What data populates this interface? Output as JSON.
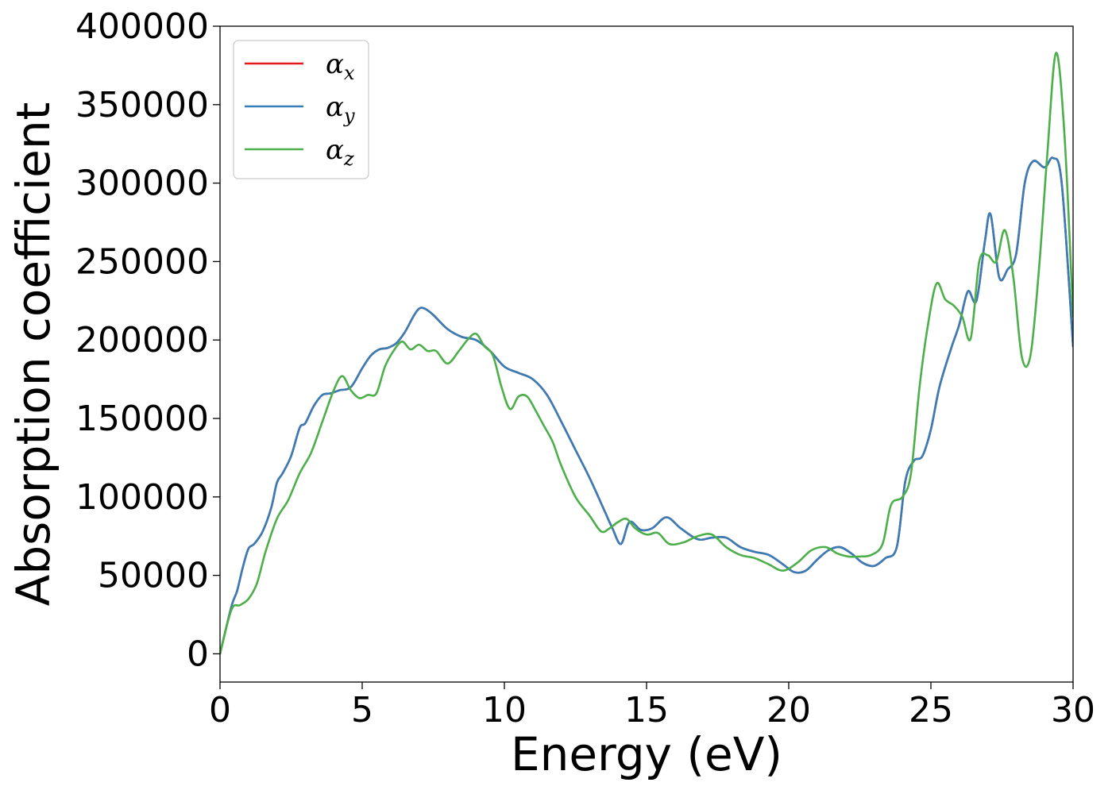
{
  "chart_data": {
    "type": "line",
    "title": "",
    "xlabel": "Energy (eV)",
    "ylabel": "Absorption coefficient",
    "xlim": [
      0,
      30
    ],
    "ylim": [
      -18000,
      400000
    ],
    "xticks": [
      0,
      5,
      10,
      15,
      20,
      25,
      30
    ],
    "yticks": [
      0,
      50000,
      100000,
      150000,
      200000,
      250000,
      300000,
      350000,
      400000
    ],
    "grid": false,
    "legend_position": "top-left",
    "series": [
      {
        "name": "α_x",
        "legend_base": "α",
        "legend_sub": "x",
        "color": "#e41a1c",
        "x": [
          0,
          0.4,
          0.6,
          0.8,
          1.0,
          1.2,
          1.5,
          1.8,
          2.0,
          2.2,
          2.5,
          2.8,
          3.0,
          3.3,
          3.6,
          3.9,
          4.2,
          4.6,
          5.0,
          5.3,
          5.6,
          5.9,
          6.2,
          6.5,
          6.8,
          7.0,
          7.2,
          7.5,
          8.0,
          8.5,
          9.0,
          9.5,
          10.0,
          10.5,
          11.0,
          11.5,
          12.0,
          12.5,
          13.0,
          13.5,
          13.8,
          14.1,
          14.4,
          14.8,
          15.2,
          15.7,
          16.2,
          16.8,
          17.3,
          17.8,
          18.3,
          18.8,
          19.3,
          19.8,
          20.2,
          20.6,
          21.0,
          21.4,
          21.8,
          22.2,
          22.6,
          23.0,
          23.4,
          23.8,
          24.1,
          24.4,
          24.7,
          25.0,
          25.3,
          25.7,
          26.0,
          26.3,
          26.6,
          26.9,
          27.1,
          27.4,
          27.7,
          28.0,
          28.3,
          28.6,
          29.0,
          29.3,
          29.6,
          30.0
        ],
        "y": [
          0,
          30000,
          40000,
          55000,
          67000,
          70000,
          78000,
          93000,
          109000,
          115000,
          126000,
          144000,
          147000,
          158000,
          165000,
          166000,
          168000,
          170000,
          182000,
          190000,
          194000,
          195000,
          198000,
          205000,
          215000,
          220000,
          220000,
          216000,
          207000,
          202000,
          200000,
          193000,
          183000,
          179000,
          175000,
          165000,
          148000,
          130000,
          112000,
          92000,
          80000,
          70000,
          84000,
          79000,
          80000,
          87000,
          80000,
          73000,
          74000,
          74000,
          68000,
          65000,
          63000,
          57000,
          52000,
          53000,
          60000,
          66000,
          68000,
          64000,
          58000,
          56000,
          61000,
          68000,
          110000,
          123000,
          126000,
          143000,
          170000,
          194000,
          210000,
          231000,
          225000,
          263000,
          280000,
          240000,
          245000,
          255000,
          300000,
          314000,
          310000,
          316000,
          300000,
          196000
        ]
      },
      {
        "name": "α_y",
        "legend_base": "α",
        "legend_sub": "y",
        "color": "#377eb8",
        "x": [
          0,
          0.4,
          0.6,
          0.8,
          1.0,
          1.2,
          1.5,
          1.8,
          2.0,
          2.2,
          2.5,
          2.8,
          3.0,
          3.3,
          3.6,
          3.9,
          4.2,
          4.6,
          5.0,
          5.3,
          5.6,
          5.9,
          6.2,
          6.5,
          6.8,
          7.0,
          7.2,
          7.5,
          8.0,
          8.5,
          9.0,
          9.5,
          10.0,
          10.5,
          11.0,
          11.5,
          12.0,
          12.5,
          13.0,
          13.5,
          13.8,
          14.1,
          14.4,
          14.8,
          15.2,
          15.7,
          16.2,
          16.8,
          17.3,
          17.8,
          18.3,
          18.8,
          19.3,
          19.8,
          20.2,
          20.6,
          21.0,
          21.4,
          21.8,
          22.2,
          22.6,
          23.0,
          23.4,
          23.8,
          24.1,
          24.4,
          24.7,
          25.0,
          25.3,
          25.7,
          26.0,
          26.3,
          26.6,
          26.9,
          27.1,
          27.4,
          27.7,
          28.0,
          28.3,
          28.6,
          29.0,
          29.3,
          29.6,
          30.0
        ],
        "y": [
          0,
          30000,
          40000,
          55000,
          67000,
          70000,
          78000,
          93000,
          109000,
          115000,
          126000,
          144000,
          147000,
          158000,
          165000,
          166000,
          168000,
          170000,
          182000,
          190000,
          194000,
          195000,
          198000,
          205000,
          215000,
          220000,
          220000,
          216000,
          207000,
          202000,
          200000,
          193000,
          183000,
          179000,
          175000,
          165000,
          148000,
          130000,
          112000,
          92000,
          80000,
          70000,
          84000,
          79000,
          80000,
          87000,
          80000,
          73000,
          74000,
          74000,
          68000,
          65000,
          63000,
          57000,
          52000,
          53000,
          60000,
          66000,
          68000,
          64000,
          58000,
          56000,
          61000,
          68000,
          110000,
          123000,
          126000,
          143000,
          170000,
          194000,
          210000,
          231000,
          225000,
          263000,
          280000,
          240000,
          245000,
          255000,
          300000,
          314000,
          310000,
          316000,
          300000,
          196000
        ]
      },
      {
        "name": "α_z",
        "legend_base": "α",
        "legend_sub": "z",
        "color": "#4daf4a",
        "x": [
          0,
          0.4,
          0.7,
          1.0,
          1.3,
          1.6,
          2.0,
          2.4,
          2.8,
          3.2,
          3.6,
          4.0,
          4.3,
          4.6,
          4.9,
          5.2,
          5.5,
          5.8,
          6.1,
          6.4,
          6.7,
          7.0,
          7.3,
          7.6,
          8.0,
          8.4,
          8.7,
          9.0,
          9.3,
          9.6,
          9.9,
          10.2,
          10.5,
          10.8,
          11.1,
          11.4,
          11.7,
          12.0,
          12.5,
          13.0,
          13.4,
          13.7,
          14.0,
          14.3,
          14.6,
          15.0,
          15.4,
          15.8,
          16.3,
          16.8,
          17.3,
          17.8,
          18.3,
          18.8,
          19.3,
          19.8,
          20.3,
          20.8,
          21.3,
          21.7,
          22.1,
          22.5,
          22.9,
          23.3,
          23.6,
          24.0,
          24.3,
          24.6,
          24.9,
          25.2,
          25.5,
          25.8,
          26.1,
          26.4,
          26.7,
          27.0,
          27.3,
          27.6,
          27.9,
          28.2,
          28.5,
          28.8,
          29.1,
          29.4,
          29.7,
          30.0
        ],
        "y": [
          0,
          28000,
          31000,
          35000,
          45000,
          65000,
          86000,
          98000,
          115000,
          128000,
          148000,
          168000,
          177000,
          168000,
          163000,
          165000,
          166000,
          183000,
          193000,
          199000,
          194000,
          197000,
          193000,
          193000,
          185000,
          193000,
          200000,
          204000,
          196000,
          190000,
          170000,
          156000,
          164000,
          164000,
          155000,
          145000,
          135000,
          120000,
          100000,
          88000,
          78000,
          80000,
          84000,
          86000,
          80000,
          76000,
          77000,
          70000,
          71000,
          75000,
          76000,
          68000,
          63000,
          61000,
          57000,
          53000,
          58000,
          66000,
          68000,
          64000,
          62000,
          62000,
          63000,
          70000,
          95000,
          100000,
          115000,
          170000,
          210000,
          236000,
          226000,
          222000,
          215000,
          201000,
          250000,
          254000,
          250000,
          270000,
          240000,
          189000,
          190000,
          245000,
          320000,
          383000,
          330000,
          215000
        ]
      }
    ]
  }
}
